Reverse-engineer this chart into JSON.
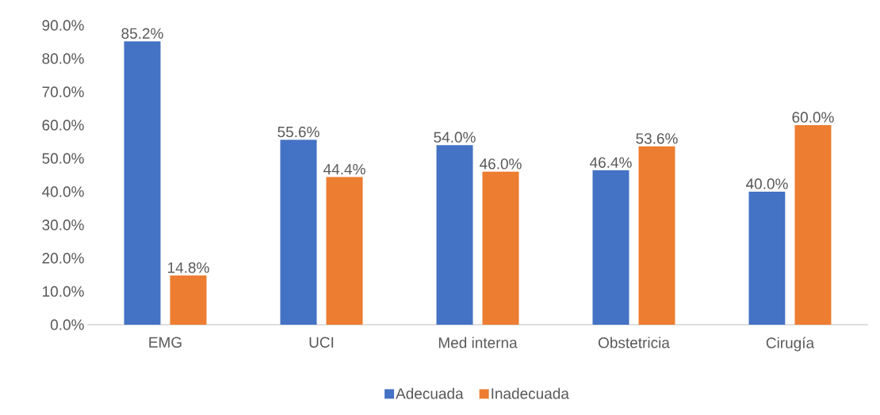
{
  "chart_data": {
    "type": "bar",
    "categories": [
      "EMG",
      "UCI",
      "Med interna",
      "Obstetricia",
      "Cirugía"
    ],
    "series": [
      {
        "name": "Adecuada",
        "color": "#4472c4",
        "values": [
          85.2,
          55.6,
          54.0,
          46.4,
          40.0
        ],
        "value_labels": [
          "85.2%",
          "55.6%",
          "54.0%",
          "46.4%",
          "40.0%"
        ]
      },
      {
        "name": "Inadecuada",
        "color": "#ed7d31",
        "values": [
          14.8,
          44.4,
          46.0,
          53.6,
          60.0
        ],
        "value_labels": [
          "14.8%",
          "44.4%",
          "46.0%",
          "53.6%",
          "60.0%"
        ]
      }
    ],
    "ylim": [
      0,
      90
    ],
    "yticks": [
      {
        "value": 0,
        "label": "0.0%"
      },
      {
        "value": 10,
        "label": "10.0%"
      },
      {
        "value": 20,
        "label": "20.0%"
      },
      {
        "value": 30,
        "label": "30.0%"
      },
      {
        "value": 40,
        "label": "40.0%"
      },
      {
        "value": 50,
        "label": "50.0%"
      },
      {
        "value": 60,
        "label": "60.0%"
      },
      {
        "value": 70,
        "label": "70.0%"
      },
      {
        "value": 80,
        "label": "80.0%"
      },
      {
        "value": 90,
        "label": "90.0%"
      }
    ],
    "legend": "bottom",
    "grid": false
  }
}
